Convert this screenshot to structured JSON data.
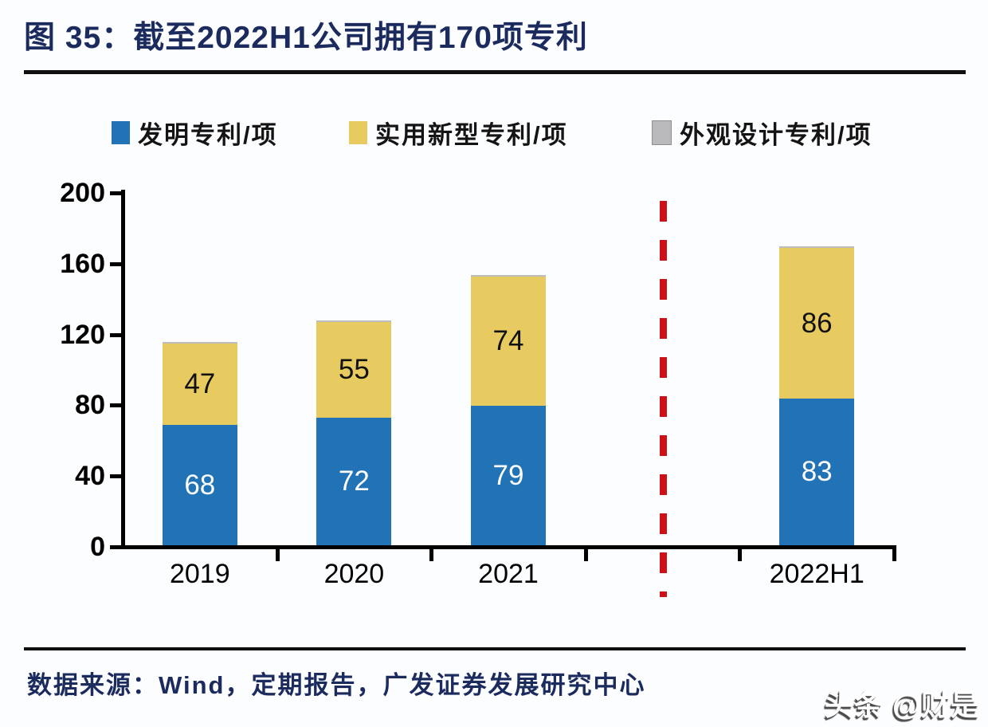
{
  "figure": {
    "title": "图 35：截至2022H1公司拥有170项专利"
  },
  "legend": {
    "items": [
      {
        "label": "发明专利/项",
        "color": "#2173b5"
      },
      {
        "label": "实用新型专利/项",
        "color": "#e7cb60"
      },
      {
        "label": "外观设计专利/项",
        "color": "#b9b9bb"
      }
    ]
  },
  "chart_data": {
    "type": "bar",
    "stacked": true,
    "title": "截至2022H1公司拥有170项专利",
    "categories": [
      "2019",
      "2020",
      "2021",
      "2022H1"
    ],
    "series": [
      {
        "name": "发明专利/项",
        "color": "#2173b5",
        "label_color": "#ffffff",
        "values": [
          68,
          72,
          79,
          83
        ]
      },
      {
        "name": "实用新型专利/项",
        "color": "#e7cb60",
        "label_color": "#111111",
        "values": [
          47,
          55,
          74,
          86
        ]
      },
      {
        "name": "外观设计专利/项",
        "color": "#b9b9bb",
        "label_color": "#111111",
        "values": []
      }
    ],
    "ylim": [
      0,
      200
    ],
    "y_ticks": [
      0,
      40,
      80,
      120,
      160,
      200
    ],
    "grid": false,
    "legend_position": "top",
    "num_slots": 5,
    "category_slots": [
      0,
      1,
      2,
      4
    ],
    "divider": {
      "style": "dashed",
      "color": "#ce1117",
      "slot": 3,
      "between": [
        "2021",
        "2022H1"
      ]
    }
  },
  "source": {
    "text": "数据来源：Wind，定期报告，广发证券发展研究中心"
  },
  "watermark": {
    "text": "头条 @财是"
  },
  "colors": {
    "title_navy": "#1c2b5e",
    "axis_black": "#000000",
    "bar_blue": "#2173b5",
    "bar_yellow": "#e7cb60",
    "legend_gray": "#b9b9bb",
    "divider_red": "#ce1117"
  }
}
